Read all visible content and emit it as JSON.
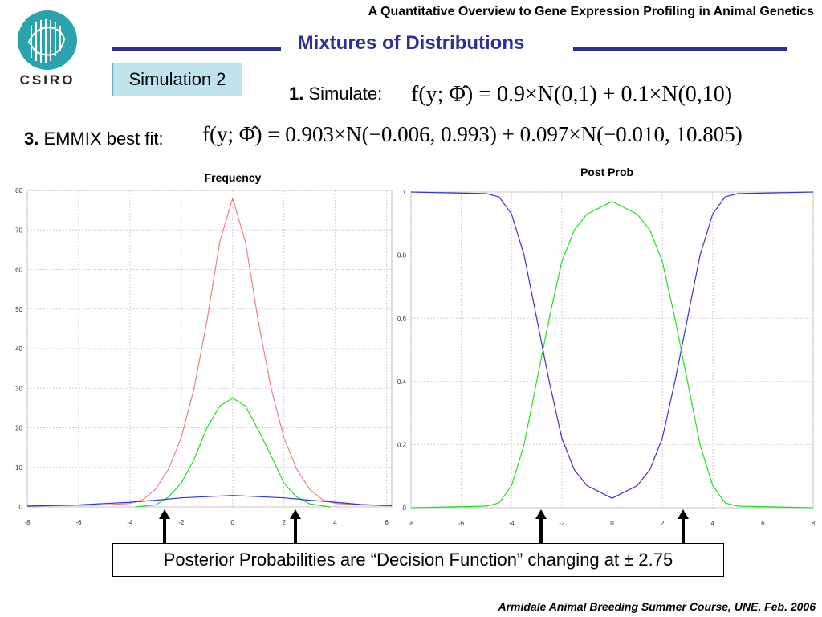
{
  "header": {
    "course_title": "A Quantitative Overview to Gene Expression Profiling in Animal Genetics",
    "slide_title": "Mixtures of Distributions",
    "logo_text": "CSIRO",
    "accent_color": "#2e3192"
  },
  "simulation_label": "Simulation 2",
  "steps": {
    "simulate": {
      "number": "1.",
      "label": "Simulate:",
      "formula": "f(y; Φ̂) = 0.9×N(0,1) + 0.1×N(0,10)"
    },
    "fit": {
      "number": "3.",
      "label": "EMMIX best fit:",
      "formula": "f(y; Φ̂) = 0.903×N(−0.006, 0.993) + 0.097×N(−0.010, 10.805)"
    }
  },
  "callout": {
    "text": "Posterior Probabilities are “Decision Function” changing at ± 2.75"
  },
  "footer": "Armidale Animal Breeding Summer Course, UNE, Feb. 2006",
  "chart_data": [
    {
      "type": "line",
      "title": "Frequency",
      "xlim": [
        -8,
        6.2
      ],
      "ylim": [
        0,
        80
      ],
      "x_ticks": [
        -8,
        -6,
        -4,
        -2,
        0,
        2,
        4,
        6
      ],
      "y_ticks": [
        0,
        10,
        20,
        30,
        40,
        50,
        60,
        70,
        80
      ],
      "grid": true,
      "series": [
        {
          "color": "#f08080",
          "x": [
            -8,
            -5,
            -4,
            -3.5,
            -3,
            -2.5,
            -2,
            -1.5,
            -1,
            -0.5,
            0,
            0.5,
            1,
            1.5,
            2,
            2.5,
            3,
            3.5,
            4,
            5,
            6.2
          ],
          "y": [
            0.2,
            0.5,
            0.9,
            1.8,
            4.5,
            9.5,
            17.5,
            30,
            47,
            67,
            78,
            67,
            47,
            30,
            17.5,
            9.5,
            4.5,
            1.8,
            0.9,
            0.5,
            0.3
          ]
        },
        {
          "color": "#22dd22",
          "x": [
            -3.8,
            -3,
            -2.5,
            -2,
            -1.5,
            -1,
            -0.5,
            0,
            0.5,
            1,
            1.5,
            2,
            2.5,
            3,
            3.8
          ],
          "y": [
            0,
            0.5,
            2.5,
            6,
            12,
            20,
            25.5,
            27.5,
            25.5,
            19.5,
            13,
            6,
            2.5,
            0.8,
            0
          ]
        },
        {
          "color": "#3333dd",
          "x": [
            -8,
            -6,
            -4,
            -3,
            -2,
            -1,
            0,
            1,
            2,
            3,
            4,
            5,
            6.2
          ],
          "y": [
            0.2,
            0.5,
            1.2,
            1.7,
            2.3,
            2.6,
            2.9,
            2.6,
            2.3,
            1.7,
            1.2,
            0.6,
            0.3
          ]
        }
      ]
    },
    {
      "type": "line",
      "title": "Post Prob",
      "xlim": [
        -8,
        8
      ],
      "ylim": [
        0,
        1
      ],
      "x_ticks": [
        -8,
        -6,
        -4,
        -2,
        0,
        2,
        4,
        6,
        8
      ],
      "y_ticks": [
        0,
        0.2,
        0.4,
        0.6,
        0.8,
        1
      ],
      "grid": true,
      "series": [
        {
          "color": "#3333dd",
          "x": [
            -8,
            -5,
            -4.5,
            -4,
            -3.5,
            -3,
            -2.75,
            -2.5,
            -2,
            -1.5,
            -1,
            0,
            1,
            1.5,
            2,
            2.5,
            2.75,
            3,
            3.5,
            4,
            4.5,
            5,
            8
          ],
          "y": [
            1,
            0.995,
            0.985,
            0.93,
            0.8,
            0.6,
            0.5,
            0.4,
            0.22,
            0.12,
            0.07,
            0.03,
            0.07,
            0.12,
            0.22,
            0.4,
            0.5,
            0.6,
            0.8,
            0.93,
            0.985,
            0.995,
            1
          ]
        },
        {
          "color": "#22dd22",
          "x": [
            -8,
            -5,
            -4.5,
            -4,
            -3.5,
            -3,
            -2.75,
            -2.5,
            -2,
            -1.5,
            -1,
            0,
            1,
            1.5,
            2,
            2.5,
            2.75,
            3,
            3.5,
            4,
            4.5,
            5,
            8
          ],
          "y": [
            0,
            0.005,
            0.015,
            0.07,
            0.2,
            0.4,
            0.5,
            0.6,
            0.78,
            0.88,
            0.93,
            0.97,
            0.93,
            0.88,
            0.78,
            0.6,
            0.5,
            0.4,
            0.2,
            0.07,
            0.015,
            0.005,
            0
          ]
        }
      ]
    }
  ]
}
